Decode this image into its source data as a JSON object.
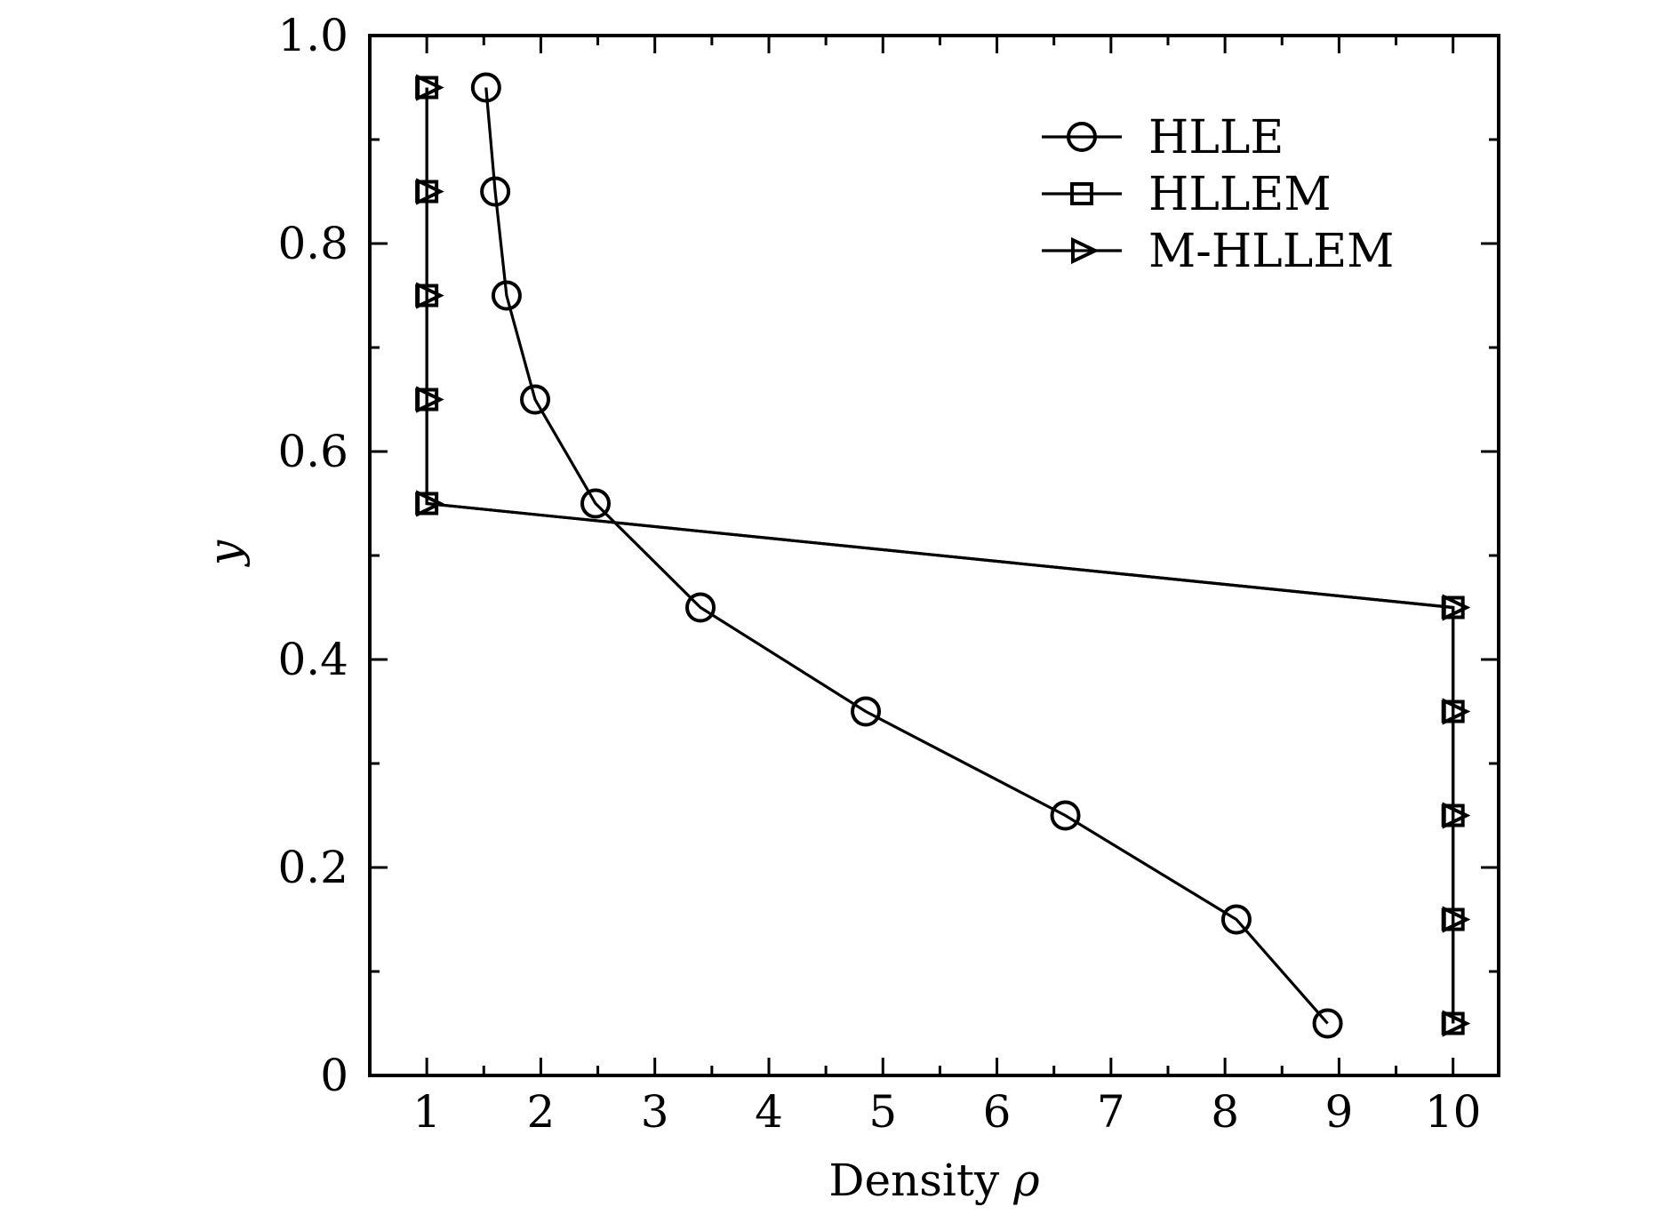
{
  "chart_data": {
    "type": "line",
    "xlabel": "Density ρ",
    "xlabel_main": "Density",
    "xlabel_symbol": "ρ",
    "ylabel": "y",
    "xlim": [
      0.5,
      10.4
    ],
    "ylim": [
      0,
      1.0
    ],
    "x_ticks": [
      1,
      2,
      3,
      4,
      5,
      6,
      7,
      8,
      9,
      10
    ],
    "x_tick_labels": [
      "1",
      "2",
      "3",
      "4",
      "5",
      "6",
      "7",
      "8",
      "9",
      "10"
    ],
    "x_minor_ticks": [
      1.5,
      2.5,
      3.5,
      4.5,
      5.5,
      6.5,
      7.5,
      8.5,
      9.5
    ],
    "y_ticks": [
      0,
      0.2,
      0.4,
      0.6,
      0.8,
      1.0
    ],
    "y_tick_labels": [
      "0",
      "0.2",
      "0.4",
      "0.6",
      "0.8",
      "1.0"
    ],
    "y_minor_ticks": [
      0.1,
      0.3,
      0.5,
      0.7,
      0.9
    ],
    "grid": false,
    "legend_position": "top-right",
    "series": [
      {
        "name": "HLLE",
        "marker": "circle",
        "x": [
          8.9,
          8.1,
          6.6,
          4.85,
          3.4,
          2.48,
          1.95,
          1.7,
          1.6,
          1.52
        ],
        "y": [
          0.05,
          0.15,
          0.25,
          0.35,
          0.45,
          0.55,
          0.65,
          0.75,
          0.85,
          0.95
        ]
      },
      {
        "name": "HLLEM",
        "marker": "square",
        "x": [
          10,
          10,
          10,
          10,
          10,
          1,
          1,
          1,
          1,
          1
        ],
        "y": [
          0.05,
          0.15,
          0.25,
          0.35,
          0.45,
          0.55,
          0.65,
          0.75,
          0.85,
          0.95
        ]
      },
      {
        "name": "M-HLLEM",
        "marker": "triangle-right",
        "x": [
          10,
          10,
          10,
          10,
          10,
          1,
          1,
          1,
          1,
          1
        ],
        "y": [
          0.05,
          0.15,
          0.25,
          0.35,
          0.45,
          0.55,
          0.65,
          0.75,
          0.85,
          0.95
        ]
      }
    ]
  }
}
